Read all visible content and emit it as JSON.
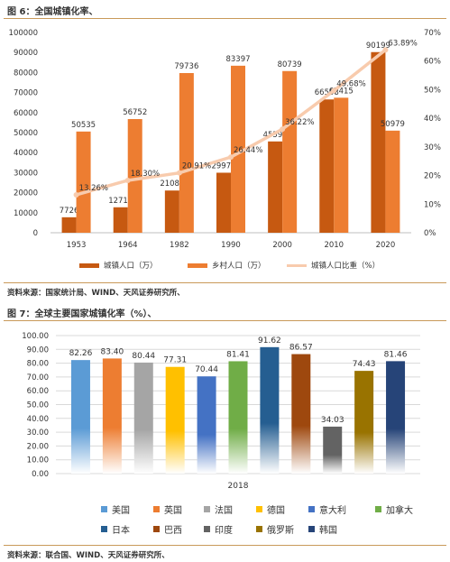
{
  "figure6": {
    "title": "图 6：全国城镇化率、",
    "source": "资料来源：国家统计局、WIND、天风证券研究所、"
  },
  "figure7": {
    "title": "图 7：全球主要国家城镇化率（%）、",
    "source": "资料来源：联合国、WIND、天风证券研究所、"
  },
  "colors": {
    "urban": "#c65911",
    "rural": "#ed7d31",
    "ratio_line": "#f8cbad",
    "rule": "#c99a5a"
  },
  "chart_data": [
    {
      "type": "bar",
      "categories": [
        "1953",
        "1964",
        "1982",
        "1990",
        "2000",
        "2010",
        "2020"
      ],
      "series": [
        {
          "name": "城镇人口（万）",
          "type": "bar",
          "axis": "left",
          "color": "#c65911",
          "values": [
            7726,
            12710,
            21082,
            29971,
            45594,
            66558,
            90199
          ],
          "labels": [
            "7726",
            "12710",
            "21082",
            "29971",
            "45594",
            "66558",
            "90199"
          ]
        },
        {
          "name": "乡村人口（万）",
          "type": "bar",
          "axis": "left",
          "color": "#ed7d31",
          "values": [
            50535,
            56752,
            79736,
            83397,
            80739,
            67415,
            50979
          ],
          "labels": [
            "50535",
            "56752",
            "79736",
            "83397",
            "80739",
            "67415",
            "50979"
          ]
        },
        {
          "name": "城镇人口比重（%）",
          "type": "line",
          "axis": "right",
          "color": "#f8cbad",
          "values": [
            13.26,
            18.3,
            20.91,
            26.44,
            36.22,
            49.68,
            63.89
          ],
          "labels": [
            "13.26%",
            "18.30%",
            "20.91%",
            "26.44%",
            "36.22%",
            "49.68%",
            "63.89%"
          ]
        }
      ],
      "ylim": [
        0,
        100000
      ],
      "y_ticks": [
        "0",
        "10000",
        "20000",
        "30000",
        "40000",
        "50000",
        "60000",
        "70000",
        "80000",
        "90000",
        "100000"
      ],
      "y2lim": [
        0,
        70
      ],
      "y2_ticks": [
        "0%",
        "10%",
        "20%",
        "30%",
        "40%",
        "50%",
        "60%",
        "70%"
      ],
      "grid": false,
      "legend": "bottom"
    },
    {
      "type": "bar",
      "categories": [
        "2018"
      ],
      "series": [
        {
          "name": "美国",
          "values": [
            82.26
          ],
          "label": "82.26",
          "color": "#5b9bd5"
        },
        {
          "name": "英国",
          "values": [
            83.4
          ],
          "label": "83.40",
          "color": "#ed7d31"
        },
        {
          "name": "法国",
          "values": [
            80.44
          ],
          "label": "80.44",
          "color": "#a5a5a5"
        },
        {
          "name": "德国",
          "values": [
            77.31
          ],
          "label": "77.31",
          "color": "#ffc000"
        },
        {
          "name": "意大利",
          "values": [
            70.44
          ],
          "label": "70.44",
          "color": "#4472c4"
        },
        {
          "name": "加拿大",
          "values": [
            81.41
          ],
          "label": "81.41",
          "color": "#70ad47"
        },
        {
          "name": "日本",
          "values": [
            91.62
          ],
          "label": "91.62",
          "color": "#255e91"
        },
        {
          "name": "巴西",
          "values": [
            86.57
          ],
          "label": "86.57",
          "color": "#9e480e"
        },
        {
          "name": "印度",
          "values": [
            34.03
          ],
          "label": "34.03",
          "color": "#636363"
        },
        {
          "name": "俄罗斯",
          "values": [
            74.43
          ],
          "label": "74.43",
          "color": "#997300"
        },
        {
          "name": "韩国",
          "values": [
            81.46
          ],
          "label": "81.46",
          "color": "#264478"
        }
      ],
      "ylim": [
        0,
        100
      ],
      "y_ticks": [
        "0.00",
        "10.00",
        "20.00",
        "30.00",
        "40.00",
        "50.00",
        "60.00",
        "70.00",
        "80.00",
        "90.00",
        "100.00"
      ],
      "grid": true,
      "legend": "bottom"
    }
  ]
}
